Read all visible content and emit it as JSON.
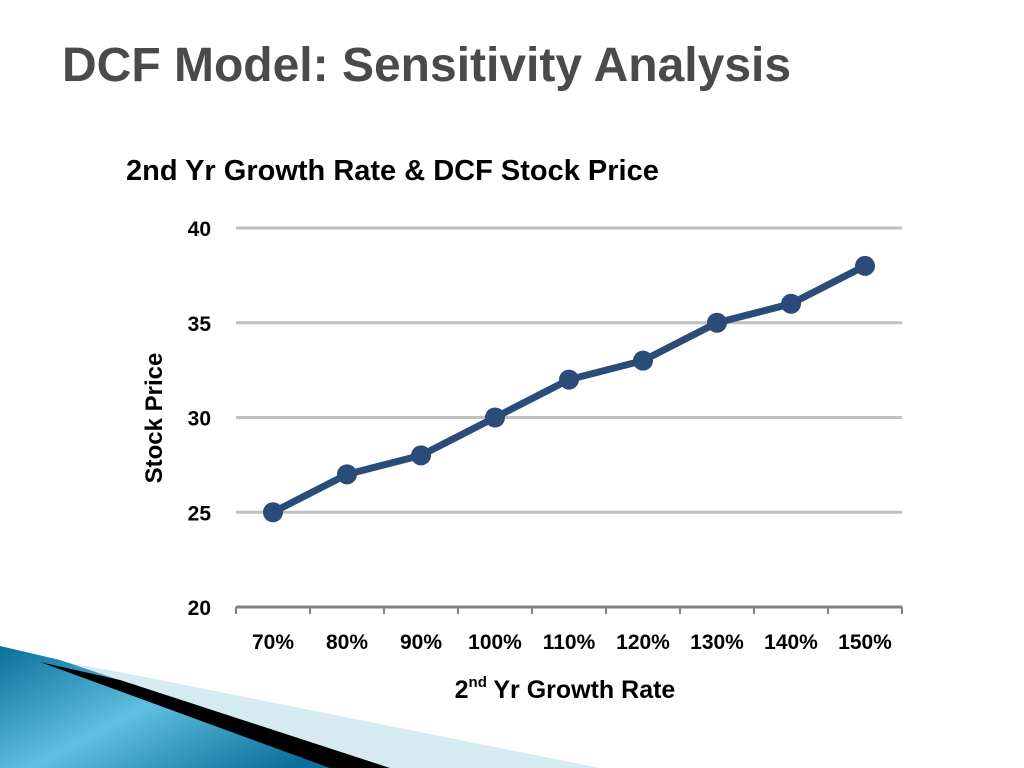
{
  "slide": {
    "title": "DCF Model: Sensitivity Analysis"
  },
  "chart_data": {
    "type": "line",
    "title": "2nd Yr Growth Rate & DCF Stock Price",
    "xlabel": "2nd Yr Growth Rate",
    "xlabel_parts": {
      "num": "2",
      "sup": "nd",
      "rest": " Yr Growth Rate"
    },
    "ylabel": "Stock Price",
    "categories": [
      "70%",
      "80%",
      "90%",
      "100%",
      "110%",
      "120%",
      "130%",
      "140%",
      "150%"
    ],
    "series": [
      {
        "values": [
          25,
          27,
          28,
          30,
          32,
          33,
          35,
          36,
          38
        ]
      }
    ],
    "ylim": [
      20,
      40
    ],
    "yticks": [
      20,
      25,
      30,
      35,
      40
    ],
    "grid": true,
    "colors": {
      "line": "#2b4b78",
      "grid": "#c0c0c0",
      "axis": "#808080"
    }
  },
  "decoration": {
    "colors": {
      "blue_dark": "#0a6f9a",
      "blue_light": "#5fbfe0",
      "black": "#000000",
      "pale": "#d6eaf2"
    }
  }
}
